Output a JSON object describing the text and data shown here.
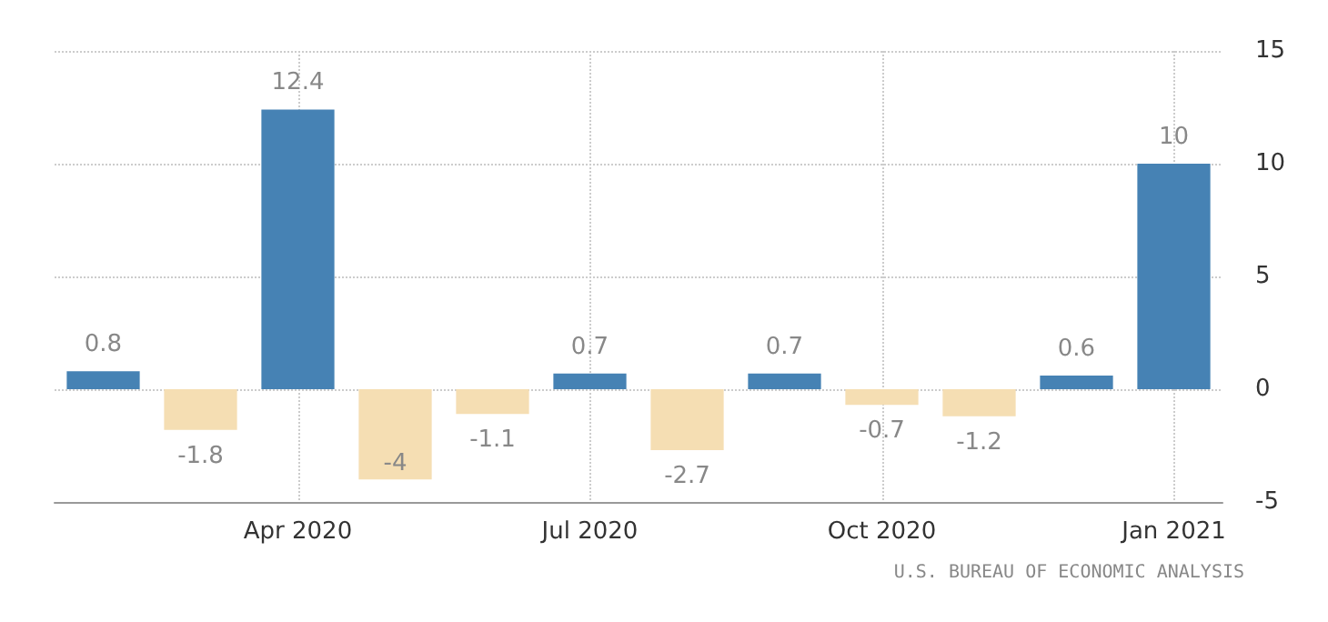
{
  "chart_data": {
    "type": "bar",
    "categories": [
      null,
      null,
      "Apr 2020",
      null,
      null,
      "Jul 2020",
      null,
      null,
      "Oct 2020",
      null,
      null,
      "Jan 2021"
    ],
    "values": [
      0.8,
      -1.8,
      12.4,
      -4,
      -1.1,
      0.7,
      -2.7,
      0.7,
      -0.7,
      -1.2,
      0.6,
      10
    ],
    "colors": [
      "#4682b4",
      "#f5deb3",
      "#4682b4",
      "#f5deb3",
      "#f5deb3",
      "#4682b4",
      "#f5deb3",
      "#4682b4",
      "#f5deb3",
      "#f5deb3",
      "#4682b4",
      "#4682b4"
    ],
    "ylim": [
      -5,
      15
    ],
    "yticks": [
      -5,
      0,
      5,
      10,
      15
    ],
    "grid": true,
    "data_labels": true,
    "annotations": [
      "U.S. BUREAU OF ECONOMIC ANALYSIS"
    ]
  }
}
